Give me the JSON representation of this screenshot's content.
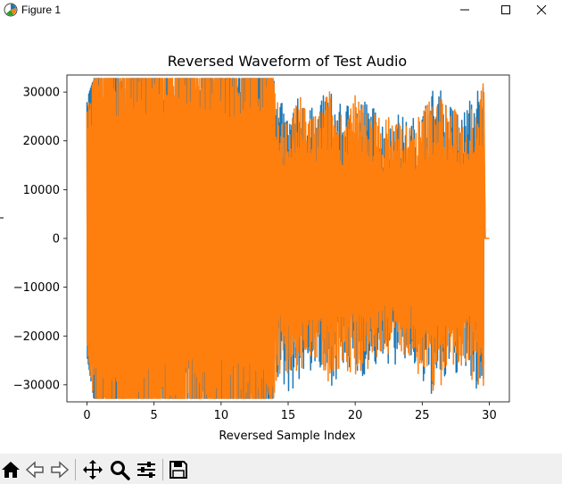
{
  "window": {
    "title": "Figure 1",
    "app_icon": "matplotlib-icon",
    "controls": [
      "minimize-icon",
      "maximize-icon",
      "close-icon"
    ]
  },
  "toolbar": {
    "buttons": [
      "home-icon",
      "back-icon",
      "forward-icon",
      "pan-icon",
      "zoom-icon",
      "configure-subplots-icon",
      "save-icon"
    ]
  },
  "chart_data": {
    "type": "line",
    "title": "Reversed Waveform of Test Audio",
    "xlabel": "Reversed Sample Index",
    "ylabel": "",
    "xlim": [
      -1.5,
      31.5
    ],
    "ylim": [
      -33500,
      33500
    ],
    "xticks": [
      0,
      5,
      10,
      15,
      20,
      25,
      30
    ],
    "xtick_labels": [
      "0",
      "5",
      "10",
      "15",
      "20",
      "25",
      "30"
    ],
    "yticks": [
      -30000,
      -20000,
      -10000,
      0,
      10000,
      20000,
      30000
    ],
    "ytick_labels": [
      "−30000",
      "−20000",
      "−10000",
      "0",
      "10000",
      "20000",
      "30000"
    ],
    "grid": false,
    "series": [
      {
        "color": "#1f77b4",
        "x_start": 0,
        "x_end": 29.8,
        "envelope": [
          [
            0.0,
            28500
          ],
          [
            0.5,
            32767
          ],
          [
            2.0,
            32767
          ],
          [
            4.0,
            32767
          ],
          [
            6.0,
            32767
          ],
          [
            8.0,
            32767
          ],
          [
            10.0,
            32767
          ],
          [
            12.0,
            32767
          ],
          [
            13.9,
            32767
          ],
          [
            14.2,
            29000
          ],
          [
            15.0,
            26000
          ],
          [
            16.0,
            30000
          ],
          [
            17.0,
            26000
          ],
          [
            18.0,
            31500
          ],
          [
            19.0,
            27000
          ],
          [
            20.0,
            30000
          ],
          [
            21.0,
            28500
          ],
          [
            22.0,
            25000
          ],
          [
            23.0,
            26500
          ],
          [
            24.0,
            24000
          ],
          [
            25.0,
            27000
          ],
          [
            26.0,
            32000
          ],
          [
            27.0,
            28000
          ],
          [
            28.0,
            26000
          ],
          [
            29.0,
            31000
          ],
          [
            29.6,
            32767
          ]
        ],
        "envelope_min": [
          [
            0.0,
            -24000
          ],
          [
            0.5,
            -32767
          ],
          [
            2.0,
            -32767
          ],
          [
            4.0,
            -32767
          ],
          [
            6.0,
            -32767
          ],
          [
            8.0,
            -32767
          ],
          [
            10.0,
            -32767
          ],
          [
            12.0,
            -32767
          ],
          [
            13.9,
            -32767
          ],
          [
            14.2,
            -30000
          ],
          [
            15.0,
            -32000
          ],
          [
            16.0,
            -29000
          ],
          [
            17.0,
            -27000
          ],
          [
            18.0,
            -31000
          ],
          [
            19.0,
            -27500
          ],
          [
            20.0,
            -29000
          ],
          [
            21.0,
            -28000
          ],
          [
            22.0,
            -25500
          ],
          [
            23.0,
            -26500
          ],
          [
            24.0,
            -25000
          ],
          [
            25.0,
            -31000
          ],
          [
            26.0,
            -32767
          ],
          [
            27.0,
            -29000
          ],
          [
            28.0,
            -27000
          ],
          [
            29.0,
            -31500
          ],
          [
            29.6,
            -32767
          ]
        ]
      },
      {
        "color": "#ff7f0e",
        "x_start": 0,
        "x_end": 30.0,
        "envelope": [
          [
            0.0,
            26000
          ],
          [
            0.5,
            32767
          ],
          [
            2.0,
            32767
          ],
          [
            4.0,
            32767
          ],
          [
            6.0,
            32767
          ],
          [
            8.0,
            32767
          ],
          [
            10.0,
            32767
          ],
          [
            12.0,
            32767
          ],
          [
            13.9,
            32767
          ],
          [
            14.2,
            28000
          ],
          [
            15.0,
            25000
          ],
          [
            16.0,
            29500
          ],
          [
            17.0,
            25500
          ],
          [
            18.0,
            31000
          ],
          [
            19.0,
            26500
          ],
          [
            20.0,
            29500
          ],
          [
            21.0,
            28000
          ],
          [
            22.0,
            24500
          ],
          [
            23.0,
            26000
          ],
          [
            24.0,
            23500
          ],
          [
            25.0,
            26500
          ],
          [
            26.0,
            31500
          ],
          [
            27.0,
            27500
          ],
          [
            28.0,
            25500
          ],
          [
            29.0,
            30500
          ],
          [
            29.6,
            32500
          ]
        ],
        "envelope_min": [
          [
            0.0,
            -22000
          ],
          [
            0.5,
            -32767
          ],
          [
            2.0,
            -32767
          ],
          [
            4.0,
            -32767
          ],
          [
            6.0,
            -32767
          ],
          [
            8.0,
            -32767
          ],
          [
            10.0,
            -32767
          ],
          [
            12.0,
            -32767
          ],
          [
            13.9,
            -32767
          ],
          [
            14.2,
            -28000
          ],
          [
            15.0,
            -30000
          ],
          [
            16.0,
            -27500
          ],
          [
            17.0,
            -26000
          ],
          [
            18.0,
            -29500
          ],
          [
            19.0,
            -26500
          ],
          [
            20.0,
            -28000
          ],
          [
            21.0,
            -27000
          ],
          [
            22.0,
            -24500
          ],
          [
            23.0,
            -25500
          ],
          [
            24.0,
            -24000
          ],
          [
            25.0,
            -29500
          ],
          [
            26.0,
            -32767
          ],
          [
            27.0,
            -28000
          ],
          [
            28.0,
            -26000
          ],
          [
            29.0,
            -30500
          ],
          [
            29.6,
            -32000
          ]
        ]
      }
    ]
  }
}
